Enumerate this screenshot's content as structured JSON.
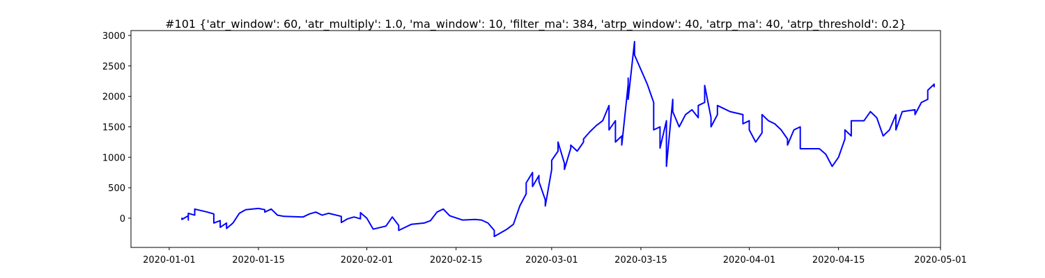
{
  "chart_data": {
    "type": "line",
    "title": "#101 {'atr_window': 60, 'atr_multiply': 1.0, 'ma_window': 10, 'filter_ma': 384, 'atrp_window': 40, 'atrp_ma': 40, 'atrp_threshold': 0.2}",
    "xlabel": "",
    "ylabel": "",
    "x_axis": {
      "type": "date",
      "range": [
        "2019-12-26",
        "2020-05-01"
      ],
      "ticks": [
        "2020-01-01",
        "2020-01-15",
        "2020-02-01",
        "2020-02-15",
        "2020-03-01",
        "2020-03-15",
        "2020-04-01",
        "2020-04-15",
        "2020-05-01"
      ]
    },
    "y_axis": {
      "range": [
        -480,
        3080
      ],
      "ticks": [
        0,
        500,
        1000,
        1500,
        2000,
        2500,
        3000
      ]
    },
    "grid": false,
    "legend": "none",
    "colors": {
      "line": "#0000ff"
    },
    "series": [
      {
        "values": [
          [
            "2020-01-03",
            10
          ],
          [
            "2020-01-03",
            -20
          ],
          [
            "2020-01-04",
            40
          ],
          [
            "2020-01-04",
            -30
          ],
          [
            "2020-01-04",
            80
          ],
          [
            "2020-01-05",
            50
          ],
          [
            "2020-01-05",
            150
          ],
          [
            "2020-01-07",
            100
          ],
          [
            "2020-01-08",
            70
          ],
          [
            "2020-01-08",
            -80
          ],
          [
            "2020-01-09",
            -40
          ],
          [
            "2020-01-09",
            -150
          ],
          [
            "2020-01-10",
            -80
          ],
          [
            "2020-01-10",
            -170
          ],
          [
            "2020-01-11",
            -80
          ],
          [
            "2020-01-12",
            80
          ],
          [
            "2020-01-13",
            140
          ],
          [
            "2020-01-15",
            160
          ],
          [
            "2020-01-16",
            140
          ],
          [
            "2020-01-16",
            100
          ],
          [
            "2020-01-17",
            150
          ],
          [
            "2020-01-18",
            50
          ],
          [
            "2020-01-19",
            30
          ],
          [
            "2020-01-22",
            20
          ],
          [
            "2020-01-23",
            70
          ],
          [
            "2020-01-24",
            100
          ],
          [
            "2020-01-25",
            50
          ],
          [
            "2020-01-26",
            80
          ],
          [
            "2020-01-28",
            30
          ],
          [
            "2020-01-28",
            -70
          ],
          [
            "2020-01-29",
            -10
          ],
          [
            "2020-01-30",
            20
          ],
          [
            "2020-01-31",
            -10
          ],
          [
            "2020-01-31",
            90
          ],
          [
            "2020-02-01",
            0
          ],
          [
            "2020-02-02",
            -180
          ],
          [
            "2020-02-04",
            -130
          ],
          [
            "2020-02-05",
            20
          ],
          [
            "2020-02-06",
            -120
          ],
          [
            "2020-02-06",
            -200
          ],
          [
            "2020-02-07",
            -150
          ],
          [
            "2020-02-08",
            -100
          ],
          [
            "2020-02-10",
            -80
          ],
          [
            "2020-02-11",
            -40
          ],
          [
            "2020-02-12",
            100
          ],
          [
            "2020-02-13",
            150
          ],
          [
            "2020-02-14",
            40
          ],
          [
            "2020-02-16",
            -30
          ],
          [
            "2020-02-18",
            -20
          ],
          [
            "2020-02-19",
            -30
          ],
          [
            "2020-02-20",
            -80
          ],
          [
            "2020-02-21",
            -200
          ],
          [
            "2020-02-21",
            -300
          ],
          [
            "2020-02-23",
            -180
          ],
          [
            "2020-02-24",
            -100
          ],
          [
            "2020-02-25",
            200
          ],
          [
            "2020-02-26",
            400
          ],
          [
            "2020-02-26",
            580
          ],
          [
            "2020-02-27",
            750
          ],
          [
            "2020-02-27",
            520
          ],
          [
            "2020-02-28",
            700
          ],
          [
            "2020-02-28",
            600
          ],
          [
            "2020-02-29",
            300
          ],
          [
            "2020-02-29",
            200
          ],
          [
            "2020-03-01",
            800
          ],
          [
            "2020-03-01",
            950
          ],
          [
            "2020-03-02",
            1100
          ],
          [
            "2020-03-02",
            1250
          ],
          [
            "2020-03-03",
            900
          ],
          [
            "2020-03-03",
            800
          ],
          [
            "2020-03-04",
            1150
          ],
          [
            "2020-03-04",
            1200
          ],
          [
            "2020-03-05",
            1100
          ],
          [
            "2020-03-06",
            1250
          ],
          [
            "2020-03-06",
            1300
          ],
          [
            "2020-03-07",
            1420
          ],
          [
            "2020-03-08",
            1520
          ],
          [
            "2020-03-09",
            1600
          ],
          [
            "2020-03-10",
            1850
          ],
          [
            "2020-03-10",
            1450
          ],
          [
            "2020-03-11",
            1600
          ],
          [
            "2020-03-11",
            1250
          ],
          [
            "2020-03-12",
            1350
          ],
          [
            "2020-03-12",
            1200
          ],
          [
            "2020-03-13",
            2200
          ],
          [
            "2020-03-13",
            2300
          ],
          [
            "2020-03-13",
            1950
          ],
          [
            "2020-03-14",
            2900
          ],
          [
            "2020-03-14",
            2850
          ],
          [
            "2020-03-14",
            2680
          ],
          [
            "2020-03-16",
            2200
          ],
          [
            "2020-03-17",
            1900
          ],
          [
            "2020-03-17",
            1450
          ],
          [
            "2020-03-18",
            1500
          ],
          [
            "2020-03-18",
            1150
          ],
          [
            "2020-03-19",
            1600
          ],
          [
            "2020-03-19",
            850
          ],
          [
            "2020-03-20",
            1950
          ],
          [
            "2020-03-20",
            1750
          ],
          [
            "2020-03-21",
            1500
          ],
          [
            "2020-03-22",
            1700
          ],
          [
            "2020-03-23",
            1780
          ],
          [
            "2020-03-24",
            1650
          ],
          [
            "2020-03-24",
            1850
          ],
          [
            "2020-03-25",
            1900
          ],
          [
            "2020-03-25",
            2180
          ],
          [
            "2020-03-26",
            1650
          ],
          [
            "2020-03-26",
            1500
          ],
          [
            "2020-03-27",
            1700
          ],
          [
            "2020-03-27",
            1850
          ],
          [
            "2020-03-28",
            1800
          ],
          [
            "2020-03-29",
            1750
          ],
          [
            "2020-03-31",
            1700
          ],
          [
            "2020-03-31",
            1550
          ],
          [
            "2020-04-01",
            1600
          ],
          [
            "2020-04-01",
            1450
          ],
          [
            "2020-04-02",
            1250
          ],
          [
            "2020-04-03",
            1400
          ],
          [
            "2020-04-03",
            1700
          ],
          [
            "2020-04-04",
            1600
          ],
          [
            "2020-04-05",
            1550
          ],
          [
            "2020-04-06",
            1450
          ],
          [
            "2020-04-07",
            1300
          ],
          [
            "2020-04-07",
            1200
          ],
          [
            "2020-04-08",
            1450
          ],
          [
            "2020-04-09",
            1500
          ],
          [
            "2020-04-09",
            1140
          ],
          [
            "2020-04-12",
            1140
          ],
          [
            "2020-04-13",
            1050
          ],
          [
            "2020-04-14",
            850
          ],
          [
            "2020-04-15",
            1000
          ],
          [
            "2020-04-16",
            1300
          ],
          [
            "2020-04-16",
            1450
          ],
          [
            "2020-04-17",
            1350
          ],
          [
            "2020-04-17",
            1600
          ],
          [
            "2020-04-19",
            1600
          ],
          [
            "2020-04-20",
            1750
          ],
          [
            "2020-04-21",
            1650
          ],
          [
            "2020-04-22",
            1350
          ],
          [
            "2020-04-23",
            1450
          ],
          [
            "2020-04-24",
            1700
          ],
          [
            "2020-04-24",
            1450
          ],
          [
            "2020-04-25",
            1750
          ],
          [
            "2020-04-27",
            1780
          ],
          [
            "2020-04-27",
            1700
          ],
          [
            "2020-04-28",
            1900
          ],
          [
            "2020-04-29",
            1950
          ],
          [
            "2020-04-29",
            2100
          ],
          [
            "2020-04-30",
            2200
          ],
          [
            "2020-04-30",
            2150
          ]
        ]
      }
    ]
  }
}
